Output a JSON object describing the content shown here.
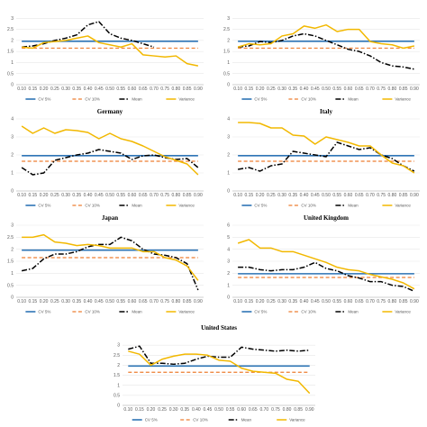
{
  "figure": {
    "x_ticks": [
      "0.10",
      "0.15",
      "0.20",
      "0.25",
      "0.30",
      "0.35",
      "0.40",
      "0.45",
      "0.50",
      "0.55",
      "0.60",
      "0.65",
      "0.70",
      "0.75",
      "0.80",
      "0.85",
      "0.90"
    ],
    "legend": [
      "CV 5%",
      "CV 10%",
      "Mean",
      "Variance"
    ],
    "colors": {
      "cv5": "#2e75b6",
      "cv10": "#ed7d31",
      "mean": "#000000",
      "variance": "#f2b800",
      "grid": "#e8e8e8",
      "axis": "#bfbfbf"
    }
  },
  "chart_data": [
    {
      "type": "line",
      "title": "",
      "ylim": [
        0,
        3.5
      ],
      "yticks": [
        0,
        0.5,
        1,
        1.5,
        2,
        2.5,
        3
      ],
      "ytick_labels": [
        "0",
        "0.5",
        "1",
        "1.5",
        "2",
        "2.5",
        "3"
      ],
      "x": [
        0.1,
        0.15,
        0.2,
        0.25,
        0.3,
        0.35,
        0.4,
        0.45,
        0.5,
        0.55,
        0.6,
        0.65,
        0.7,
        0.75,
        0.8,
        0.85,
        0.9
      ],
      "series": [
        {
          "name": "CV 5%",
          "values": [
            1.96,
            1.96,
            1.96,
            1.96,
            1.96,
            1.96,
            1.96,
            1.96,
            1.96,
            1.96,
            1.96,
            1.96,
            1.96,
            1.96,
            1.96,
            1.96,
            1.96
          ]
        },
        {
          "name": "CV 10%",
          "values": [
            1.65,
            1.65,
            1.65,
            1.65,
            1.65,
            1.65,
            1.65,
            1.65,
            1.65,
            1.65,
            1.65,
            1.65,
            1.65,
            1.65,
            1.65,
            1.65,
            1.65
          ]
        },
        {
          "name": "Mean",
          "values": [
            1.7,
            1.75,
            1.85,
            2.0,
            2.1,
            2.25,
            2.7,
            2.85,
            2.3,
            2.1,
            2.0,
            1.85,
            1.7,
            null,
            null,
            null,
            null
          ]
        },
        {
          "name": "Variance",
          "values": [
            1.7,
            1.65,
            1.9,
            1.95,
            2.0,
            2.1,
            2.2,
            1.9,
            1.8,
            1.7,
            1.85,
            1.35,
            1.3,
            1.25,
            1.3,
            0.95,
            0.85
          ]
        }
      ]
    },
    {
      "type": "line",
      "title": "",
      "ylim": [
        0,
        3.5
      ],
      "yticks": [
        0,
        0.5,
        1,
        1.5,
        2,
        2.5,
        3
      ],
      "ytick_labels": [
        "0",
        "0.5",
        "1",
        "1.5",
        "2",
        "2.5",
        "3"
      ],
      "x": [
        0.1,
        0.15,
        0.2,
        0.25,
        0.3,
        0.35,
        0.4,
        0.45,
        0.5,
        0.55,
        0.6,
        0.65,
        0.7,
        0.75,
        0.8,
        0.85,
        0.9
      ],
      "series": [
        {
          "name": "CV 5%",
          "values": [
            1.96,
            1.96,
            1.96,
            1.96,
            1.96,
            1.96,
            1.96,
            1.96,
            1.96,
            1.96,
            1.96,
            1.96,
            1.96,
            1.96,
            1.96,
            1.96,
            1.96
          ]
        },
        {
          "name": "CV 10%",
          "values": [
            1.65,
            1.65,
            1.65,
            1.65,
            1.65,
            1.65,
            1.65,
            1.65,
            1.65,
            1.65,
            1.65,
            1.65,
            1.65,
            1.65,
            1.65,
            1.65,
            1.65
          ]
        },
        {
          "name": "Mean",
          "values": [
            1.7,
            1.75,
            1.95,
            1.9,
            2.0,
            2.2,
            2.3,
            2.2,
            2.0,
            1.8,
            1.6,
            1.5,
            1.3,
            1.0,
            0.85,
            0.8,
            0.7
          ]
        },
        {
          "name": "Variance",
          "values": [
            1.7,
            1.85,
            1.8,
            1.85,
            2.2,
            2.3,
            2.65,
            2.55,
            2.7,
            2.4,
            2.5,
            2.5,
            1.95,
            1.85,
            1.8,
            1.65,
            1.75
          ]
        }
      ]
    },
    {
      "type": "line",
      "title": "Germany",
      "ylim": [
        0,
        4
      ],
      "yticks": [
        0,
        1,
        2,
        3,
        4
      ],
      "ytick_labels": [
        "0",
        "1",
        "2",
        "3",
        "4"
      ],
      "x": [
        0.1,
        0.15,
        0.2,
        0.25,
        0.3,
        0.35,
        0.4,
        0.45,
        0.5,
        0.55,
        0.6,
        0.65,
        0.7,
        0.75,
        0.8,
        0.85,
        0.9
      ],
      "series": [
        {
          "name": "CV 5%",
          "values": [
            1.96,
            1.96,
            1.96,
            1.96,
            1.96,
            1.96,
            1.96,
            1.96,
            1.96,
            1.96,
            1.96,
            1.96,
            1.96,
            1.96,
            1.96,
            1.96,
            1.96
          ]
        },
        {
          "name": "CV 10%",
          "values": [
            1.65,
            1.65,
            1.65,
            1.65,
            1.65,
            1.65,
            1.65,
            1.65,
            1.65,
            1.65,
            1.65,
            1.65,
            1.65,
            1.65,
            1.65,
            1.65,
            1.65
          ]
        },
        {
          "name": "Mean",
          "values": [
            1.3,
            0.9,
            1.0,
            1.7,
            1.85,
            2.0,
            2.1,
            2.3,
            2.2,
            2.1,
            1.75,
            1.95,
            2.0,
            1.85,
            1.75,
            1.8,
            1.3
          ]
        },
        {
          "name": "Variance",
          "values": [
            3.6,
            3.2,
            3.5,
            3.2,
            3.4,
            3.35,
            3.25,
            2.9,
            3.2,
            2.9,
            2.75,
            2.5,
            2.2,
            1.9,
            1.7,
            1.5,
            0.9
          ]
        }
      ]
    },
    {
      "type": "line",
      "title": "Italy",
      "ylim": [
        0,
        4
      ],
      "yticks": [
        0,
        1,
        2,
        3,
        4
      ],
      "ytick_labels": [
        "0",
        "1",
        "2",
        "3",
        "4"
      ],
      "x": [
        0.1,
        0.15,
        0.2,
        0.25,
        0.3,
        0.35,
        0.4,
        0.45,
        0.5,
        0.55,
        0.6,
        0.65,
        0.7,
        0.75,
        0.8,
        0.85,
        0.9
      ],
      "series": [
        {
          "name": "CV 5%",
          "values": [
            1.96,
            1.96,
            1.96,
            1.96,
            1.96,
            1.96,
            1.96,
            1.96,
            1.96,
            1.96,
            1.96,
            1.96,
            1.96,
            1.96,
            1.96,
            1.96,
            1.96
          ]
        },
        {
          "name": "CV 10%",
          "values": [
            1.65,
            1.65,
            1.65,
            1.65,
            1.65,
            1.65,
            1.65,
            1.65,
            1.65,
            1.65,
            1.65,
            1.65,
            1.65,
            1.65,
            1.65,
            1.65,
            1.65
          ]
        },
        {
          "name": "Mean",
          "values": [
            1.2,
            1.3,
            1.1,
            1.4,
            1.5,
            2.2,
            2.1,
            2.0,
            1.9,
            2.7,
            2.5,
            2.3,
            2.4,
            2.0,
            1.8,
            1.4,
            1.1
          ]
        },
        {
          "name": "Variance",
          "values": [
            3.8,
            3.8,
            3.75,
            3.5,
            3.5,
            3.1,
            3.05,
            2.6,
            3.0,
            2.85,
            2.7,
            2.5,
            2.5,
            2.0,
            1.55,
            1.4,
            1.0
          ]
        }
      ]
    },
    {
      "type": "line",
      "title": "Japan",
      "ylim": [
        0,
        3
      ],
      "yticks": [
        0,
        0.5,
        1,
        1.5,
        2,
        2.5,
        3
      ],
      "ytick_labels": [
        "0",
        "0.5",
        "1",
        "1.5",
        "2",
        "2.5",
        "3"
      ],
      "x": [
        0.1,
        0.15,
        0.2,
        0.25,
        0.3,
        0.35,
        0.4,
        0.45,
        0.5,
        0.55,
        0.6,
        0.65,
        0.7,
        0.75,
        0.8,
        0.85,
        0.9
      ],
      "series": [
        {
          "name": "CV 5%",
          "values": [
            1.96,
            1.96,
            1.96,
            1.96,
            1.96,
            1.96,
            1.96,
            1.96,
            1.96,
            1.96,
            1.96,
            1.96,
            1.96,
            1.96,
            1.96,
            1.96,
            1.96
          ]
        },
        {
          "name": "CV 10%",
          "values": [
            1.65,
            1.65,
            1.65,
            1.65,
            1.65,
            1.65,
            1.65,
            1.65,
            1.65,
            1.65,
            1.65,
            1.65,
            1.65,
            1.65,
            1.65,
            1.65,
            1.65
          ]
        },
        {
          "name": "Mean",
          "values": [
            1.1,
            1.2,
            1.6,
            1.8,
            1.8,
            1.9,
            2.1,
            2.2,
            2.2,
            2.5,
            2.35,
            2.0,
            1.8,
            1.75,
            1.65,
            1.4,
            0.3
          ]
        },
        {
          "name": "Variance",
          "values": [
            2.5,
            2.5,
            2.6,
            2.3,
            2.25,
            2.15,
            2.2,
            2.15,
            2.05,
            2.05,
            2.05,
            1.9,
            1.9,
            1.65,
            1.55,
            1.3,
            0.7
          ]
        }
      ]
    },
    {
      "type": "line",
      "title": "United Kingdom",
      "ylim": [
        0,
        6
      ],
      "yticks": [
        0,
        1,
        2,
        3,
        4,
        5,
        6
      ],
      "ytick_labels": [
        "0",
        "1",
        "2",
        "3",
        "4",
        "5",
        "6"
      ],
      "x": [
        0.1,
        0.15,
        0.2,
        0.25,
        0.3,
        0.35,
        0.4,
        0.45,
        0.5,
        0.55,
        0.6,
        0.65,
        0.7,
        0.75,
        0.8,
        0.85,
        0.9
      ],
      "series": [
        {
          "name": "CV 5%",
          "values": [
            1.96,
            1.96,
            1.96,
            1.96,
            1.96,
            1.96,
            1.96,
            1.96,
            1.96,
            1.96,
            1.96,
            1.96,
            1.96,
            1.96,
            1.96,
            1.96,
            1.96
          ]
        },
        {
          "name": "CV 10%",
          "values": [
            1.65,
            1.65,
            1.65,
            1.65,
            1.65,
            1.65,
            1.65,
            1.65,
            1.65,
            1.65,
            1.65,
            1.65,
            1.65,
            1.65,
            1.65,
            1.65,
            1.65
          ]
        },
        {
          "name": "Mean",
          "values": [
            2.5,
            2.5,
            2.3,
            2.2,
            2.3,
            2.3,
            2.5,
            2.9,
            2.4,
            2.2,
            1.8,
            1.6,
            1.3,
            1.3,
            1.0,
            0.9,
            0.5
          ]
        },
        {
          "name": "Variance",
          "values": [
            4.5,
            4.8,
            4.1,
            4.1,
            3.8,
            3.8,
            3.5,
            3.2,
            2.9,
            2.5,
            2.3,
            2.2,
            1.9,
            1.7,
            1.5,
            1.2,
            0.7
          ]
        }
      ]
    },
    {
      "type": "line",
      "title": "United States",
      "ylim": [
        0,
        3.5
      ],
      "yticks": [
        0,
        0.5,
        1,
        1.5,
        2,
        2.5,
        3
      ],
      "ytick_labels": [
        "0",
        "0.5",
        "1",
        "1.5",
        "2",
        "2.5",
        "3"
      ],
      "x": [
        0.1,
        0.15,
        0.2,
        0.25,
        0.3,
        0.35,
        0.4,
        0.45,
        0.5,
        0.55,
        0.6,
        0.65,
        0.7,
        0.75,
        0.8,
        0.85,
        0.9
      ],
      "series": [
        {
          "name": "CV 5%",
          "values": [
            1.96,
            1.96,
            1.96,
            1.96,
            1.96,
            1.96,
            1.96,
            1.96,
            1.96,
            1.96,
            1.96,
            1.96,
            1.96,
            1.96,
            1.96,
            1.96,
            1.96
          ]
        },
        {
          "name": "CV 10%",
          "values": [
            1.65,
            1.65,
            1.65,
            1.65,
            1.65,
            1.65,
            1.65,
            1.65,
            1.65,
            1.65,
            1.65,
            1.65,
            1.65,
            1.65,
            1.65,
            1.65,
            1.65
          ]
        },
        {
          "name": "Mean",
          "values": [
            2.8,
            2.95,
            2.1,
            2.1,
            2.05,
            2.1,
            2.3,
            2.45,
            2.4,
            2.4,
            2.9,
            2.8,
            2.75,
            2.7,
            2.75,
            2.7,
            2.75
          ]
        },
        {
          "name": "Variance",
          "values": [
            2.7,
            2.55,
            2.0,
            2.3,
            2.45,
            2.55,
            2.55,
            2.5,
            2.25,
            2.2,
            1.85,
            1.7,
            1.65,
            1.6,
            1.3,
            1.2,
            0.6
          ]
        }
      ]
    }
  ]
}
